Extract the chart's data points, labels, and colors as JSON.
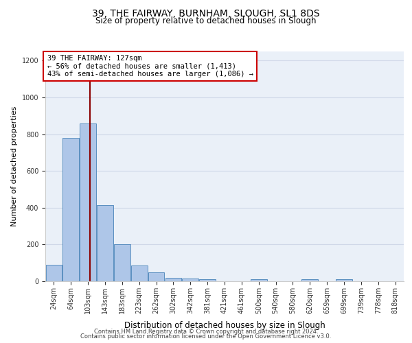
{
  "title": "39, THE FAIRWAY, BURNHAM, SLOUGH, SL1 8DS",
  "subtitle": "Size of property relative to detached houses in Slough",
  "xlabel": "Distribution of detached houses by size in Slough",
  "ylabel": "Number of detached properties",
  "bins": [
    "24sqm",
    "64sqm",
    "103sqm",
    "143sqm",
    "183sqm",
    "223sqm",
    "262sqm",
    "302sqm",
    "342sqm",
    "381sqm",
    "421sqm",
    "461sqm",
    "500sqm",
    "540sqm",
    "580sqm",
    "620sqm",
    "659sqm",
    "699sqm",
    "739sqm",
    "778sqm",
    "818sqm"
  ],
  "values": [
    90,
    780,
    860,
    415,
    200,
    85,
    50,
    20,
    15,
    10,
    0,
    0,
    10,
    0,
    0,
    10,
    0,
    10,
    0,
    0,
    0
  ],
  "bar_color": "#aec6e8",
  "bar_edge_color": "#5a8fc0",
  "bar_linewidth": 0.7,
  "vline_color": "#8b0000",
  "annotation_line1": "39 THE FAIRWAY: 127sqm",
  "annotation_line2": "← 56% of detached houses are smaller (1,413)",
  "annotation_line3": "43% of semi-detached houses are larger (1,086) →",
  "annotation_box_color": "#ffffff",
  "annotation_box_edge": "#cc0000",
  "ylim": [
    0,
    1250
  ],
  "yticks": [
    0,
    200,
    400,
    600,
    800,
    1000,
    1200
  ],
  "grid_color": "#d0d8e8",
  "bg_color": "#eaf0f8",
  "footer1": "Contains HM Land Registry data © Crown copyright and database right 2024.",
  "footer2": "Contains public sector information licensed under the Open Government Licence v3.0.",
  "title_fontsize": 10,
  "subtitle_fontsize": 8.5,
  "ylabel_fontsize": 8,
  "xlabel_fontsize": 8.5,
  "tick_fontsize": 7,
  "annotation_fontsize": 7.5,
  "footer_fontsize": 6
}
